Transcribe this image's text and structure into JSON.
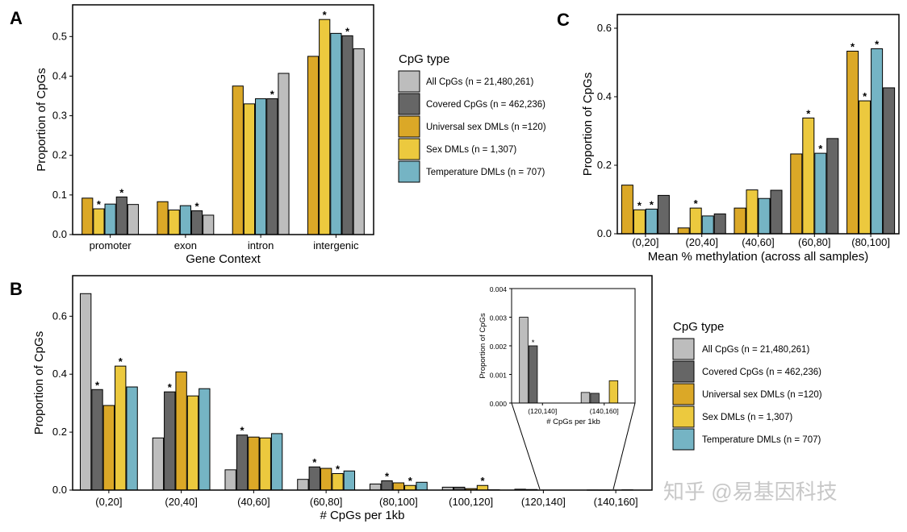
{
  "colors": {
    "all": "#bdbdbd",
    "covered": "#666666",
    "universal": "#dba827",
    "sex": "#ecc93e",
    "temp": "#75b4c4"
  },
  "watermark": "知乎 @易基因科技",
  "chart_data": [
    {
      "id": "A",
      "panel": "A",
      "type": "bar",
      "xlabel": "Gene Context",
      "ylabel": "Proportion of CpGs",
      "ylim": [
        0,
        0.58
      ],
      "yticks": [
        "0.0",
        "0.1",
        "0.2",
        "0.3",
        "0.4",
        "0.5"
      ],
      "categories": [
        "promoter",
        "exon",
        "intron",
        "intergenic"
      ],
      "series": [
        {
          "key": "universal",
          "name": "Universal sex DMLs (n =120)",
          "values": [
            0.092,
            0.083,
            0.375,
            0.45
          ],
          "stars": [
            false,
            false,
            false,
            false
          ]
        },
        {
          "key": "sex",
          "name": "Sex DMLs (n = 1,307)",
          "values": [
            0.065,
            0.062,
            0.33,
            0.543
          ],
          "stars": [
            true,
            false,
            false,
            true
          ]
        },
        {
          "key": "temp",
          "name": "Temperature DMLs (n = 707)",
          "values": [
            0.077,
            0.073,
            0.343,
            0.508
          ],
          "stars": [
            false,
            false,
            false,
            false
          ]
        },
        {
          "key": "covered",
          "name": "Covered CpGs (n = 462,236)",
          "values": [
            0.095,
            0.06,
            0.343,
            0.502
          ],
          "stars": [
            true,
            true,
            true,
            true
          ]
        },
        {
          "key": "all",
          "name": "All CpGs (n = 21,480,261)",
          "values": [
            0.076,
            0.049,
            0.407,
            0.469
          ],
          "stars": [
            false,
            false,
            false,
            false
          ]
        }
      ]
    },
    {
      "id": "C",
      "panel": "C",
      "type": "bar",
      "xlabel": "Mean % methylation (across all samples)",
      "ylabel": "Proportion of CpGs",
      "ylim": [
        0,
        0.64
      ],
      "yticks": [
        "0.0",
        "0.2",
        "0.4",
        "0.6"
      ],
      "categories": [
        "(0,20]",
        "(20,40]",
        "(40,60]",
        "(60,80]",
        "(80,100]"
      ],
      "series": [
        {
          "key": "universal",
          "name": "Universal sex DMLs (n =120)",
          "values": [
            0.142,
            0.017,
            0.075,
            0.233,
            0.533
          ],
          "stars": [
            false,
            false,
            false,
            false,
            true
          ]
        },
        {
          "key": "sex",
          "name": "Sex DMLs (n = 1,307)",
          "values": [
            0.07,
            0.075,
            0.128,
            0.338,
            0.388
          ],
          "stars": [
            true,
            true,
            false,
            true,
            true
          ]
        },
        {
          "key": "temp",
          "name": "Temperature DMLs (n = 707)",
          "values": [
            0.072,
            0.052,
            0.103,
            0.235,
            0.54
          ],
          "stars": [
            true,
            false,
            false,
            true,
            true
          ]
        },
        {
          "key": "covered",
          "name": "Covered CpGs (n = 462,236)",
          "values": [
            0.112,
            0.058,
            0.127,
            0.278,
            0.426
          ],
          "stars": [
            false,
            false,
            false,
            false,
            false
          ]
        }
      ]
    },
    {
      "id": "B",
      "panel": "B",
      "type": "bar",
      "xlabel": "# CpGs per 1kb",
      "ylabel": "Proportion of CpGs",
      "ylim": [
        0,
        0.74
      ],
      "yticks": [
        "0.0",
        "0.2",
        "0.4",
        "0.6"
      ],
      "categories": [
        "(0,20]",
        "(20,40]",
        "(40,60]",
        "(60,80]",
        "(80,100]",
        "(100,120]",
        "(120,140]",
        "(140,160]"
      ],
      "series": [
        {
          "key": "all",
          "name": "All CpGs (n = 21,480,261)",
          "values": [
            0.678,
            0.18,
            0.07,
            0.037,
            0.021,
            0.01,
            0.003,
            0.0004
          ],
          "stars": [
            false,
            false,
            false,
            false,
            false,
            false,
            false,
            false
          ]
        },
        {
          "key": "covered",
          "name": "Covered CpGs (n = 462,236)",
          "values": [
            0.347,
            0.339,
            0.19,
            0.08,
            0.032,
            0.01,
            0.002,
            0.0003
          ],
          "stars": [
            true,
            true,
            true,
            true,
            true,
            false,
            false,
            false
          ]
        },
        {
          "key": "universal",
          "name": "Universal sex DMLs (n =120)",
          "values": [
            0.292,
            0.408,
            0.183,
            0.075,
            0.025,
            0.005,
            0.0,
            0.0
          ],
          "stars": [
            false,
            false,
            false,
            false,
            false,
            false,
            false,
            false
          ]
        },
        {
          "key": "sex",
          "name": "Sex DMLs (n = 1,307)",
          "values": [
            0.428,
            0.325,
            0.18,
            0.057,
            0.016,
            0.016,
            0.0,
            0.0008
          ],
          "stars": [
            true,
            false,
            false,
            true,
            true,
            true,
            false,
            false
          ]
        },
        {
          "key": "temp",
          "name": "Temperature DMLs (n = 707)",
          "values": [
            0.356,
            0.35,
            0.195,
            0.066,
            0.027,
            0.001,
            0.0,
            0.0
          ],
          "stars": [
            false,
            false,
            false,
            false,
            false,
            false,
            false,
            false
          ]
        }
      ]
    },
    {
      "id": "B-inset",
      "panel": "B inset",
      "type": "bar",
      "xlabel": "# CpGs per 1kb",
      "ylabel": "Proportion of CpGs",
      "ylim": [
        0,
        0.004
      ],
      "yticks": [
        "0.000",
        "0.001",
        "0.002",
        "0.003",
        "0.004"
      ],
      "categories": [
        "(120,140]",
        "(140,160]"
      ],
      "series": [
        {
          "key": "all",
          "name": "All CpGs (n = 21,480,261)",
          "values": [
            0.003,
            0.00037
          ],
          "stars": [
            false,
            false
          ]
        },
        {
          "key": "covered",
          "name": "Covered CpGs (n = 462,236)",
          "values": [
            0.002,
            0.00034
          ],
          "stars": [
            true,
            false
          ]
        },
        {
          "key": "universal",
          "name": "Universal sex DMLs (n =120)",
          "values": [
            0.0,
            0.0
          ],
          "stars": [
            false,
            false
          ]
        },
        {
          "key": "sex",
          "name": "Sex DMLs (n = 1,307)",
          "values": [
            0.0,
            0.00078
          ],
          "stars": [
            false,
            false
          ]
        },
        {
          "key": "temp",
          "name": "Temperature DMLs (n = 707)",
          "values": [
            0.0,
            0.0
          ],
          "stars": [
            false,
            false
          ]
        }
      ]
    }
  ],
  "legends": [
    {
      "id": "top",
      "title": "CpG type",
      "items": [
        {
          "key": "all",
          "label": "All CpGs (n = 21,480,261)"
        },
        {
          "key": "covered",
          "label": "Covered CpGs (n = 462,236)"
        },
        {
          "key": "universal",
          "label": "Universal sex DMLs (n =120)"
        },
        {
          "key": "sex",
          "label": "Sex DMLs (n = 1,307)"
        },
        {
          "key": "temp",
          "label": "Temperature DMLs (n = 707)"
        }
      ]
    },
    {
      "id": "bottom",
      "title": "CpG type",
      "items": [
        {
          "key": "all",
          "label": "All CpGs (n = 21,480,261)"
        },
        {
          "key": "covered",
          "label": "Covered CpGs (n = 462,236)"
        },
        {
          "key": "universal",
          "label": "Universal sex DMLs (n =120)"
        },
        {
          "key": "sex",
          "label": "Sex DMLs (n = 1,307)"
        },
        {
          "key": "temp",
          "label": "Temperature DMLs (n = 707)"
        }
      ]
    }
  ]
}
